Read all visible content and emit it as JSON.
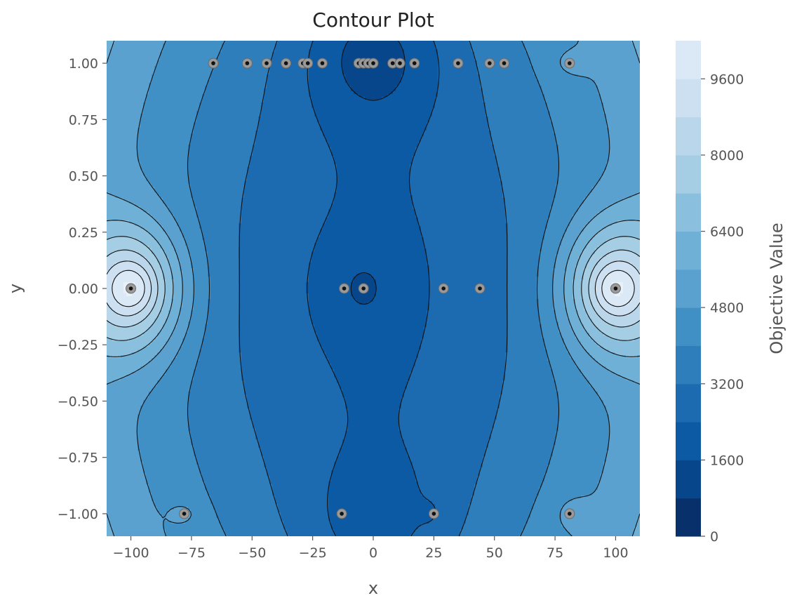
{
  "chart_data": {
    "type": "contour",
    "title": "Contour Plot",
    "xlabel": "x",
    "ylabel": "y",
    "colorbar_label": "Objective Value",
    "xlim": [
      -110,
      110
    ],
    "ylim": [
      -1.1,
      1.1
    ],
    "x_ticks": [
      -100,
      -75,
      -50,
      -25,
      0,
      25,
      50,
      75,
      100
    ],
    "x_tick_labels": [
      "−100",
      "−75",
      "−50",
      "−25",
      "0",
      "25",
      "50",
      "75",
      "100"
    ],
    "y_ticks": [
      1.0,
      0.75,
      0.5,
      0.25,
      0.0,
      -0.25,
      -0.5,
      -0.75,
      -1.0
    ],
    "y_tick_labels": [
      "1.00",
      "0.75",
      "0.50",
      "0.25",
      "0.00",
      "−0.25",
      "−0.50",
      "−0.75",
      "−1.00"
    ],
    "colorbar_range": [
      0,
      10400
    ],
    "colorbar_levels_step": 800,
    "colorbar_ticks": [
      0,
      1600,
      3200,
      4800,
      6400,
      8000,
      9600
    ],
    "colorbar_tick_labels": [
      "0",
      "1600",
      "3200",
      "4800",
      "6400",
      "8000",
      "9600"
    ],
    "colormap": [
      "#08306b",
      "#08468b",
      "#0b5aa3",
      "#1c6bb0",
      "#2f7ebc",
      "#4090c5",
      "#5aa1cf",
      "#6fb0d7",
      "#8abfdd",
      "#a5cde3",
      "#bad6eb",
      "#cde0f1",
      "#dbe9f6",
      "#e8f1fa",
      "#f0f7fd"
    ],
    "grid": false,
    "sample_points": [
      {
        "x": -66,
        "y": 1.0
      },
      {
        "x": -52,
        "y": 1.0
      },
      {
        "x": -44,
        "y": 1.0
      },
      {
        "x": -36,
        "y": 1.0
      },
      {
        "x": -29,
        "y": 1.0
      },
      {
        "x": -27,
        "y": 1.0
      },
      {
        "x": -21,
        "y": 1.0
      },
      {
        "x": -6,
        "y": 1.0
      },
      {
        "x": -4,
        "y": 1.0
      },
      {
        "x": -2,
        "y": 1.0
      },
      {
        "x": 0,
        "y": 1.0
      },
      {
        "x": 8,
        "y": 1.0
      },
      {
        "x": 11,
        "y": 1.0
      },
      {
        "x": 17,
        "y": 1.0
      },
      {
        "x": 35,
        "y": 1.0
      },
      {
        "x": 48,
        "y": 1.0
      },
      {
        "x": 54,
        "y": 1.0
      },
      {
        "x": 81,
        "y": 1.0
      },
      {
        "x": -100,
        "y": 0.0
      },
      {
        "x": -12,
        "y": 0.0
      },
      {
        "x": -4,
        "y": 0.0
      },
      {
        "x": 29,
        "y": 0.0
      },
      {
        "x": 44,
        "y": 0.0
      },
      {
        "x": 100,
        "y": 0.0
      },
      {
        "x": -78,
        "y": -1.0
      },
      {
        "x": -13,
        "y": -1.0
      },
      {
        "x": 25,
        "y": -1.0
      },
      {
        "x": 81,
        "y": -1.0
      }
    ]
  }
}
